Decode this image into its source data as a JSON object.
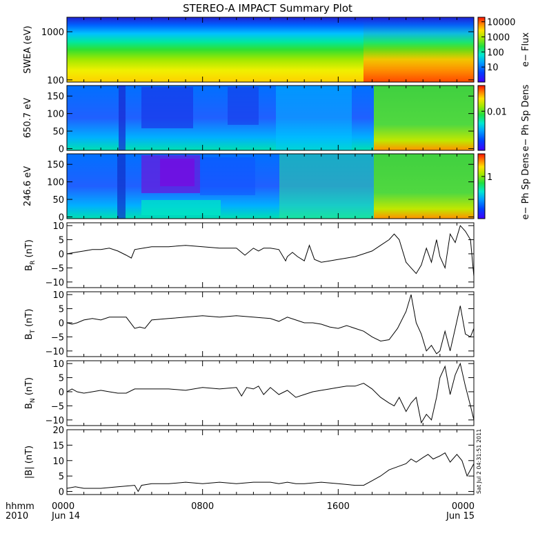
{
  "title": "STEREO-A IMPACT Summary Plot",
  "stamp": "Sat Jul  2 04:31:51 2011",
  "x_axis": {
    "corner_top": "hhmm",
    "corner_bottom": "2010",
    "ticks": [
      {
        "hour": 0,
        "top": "0000",
        "bottom": "Jun 14"
      },
      {
        "hour": 8,
        "top": "0800",
        "bottom": ""
      },
      {
        "hour": 16,
        "top": "1600",
        "bottom": ""
      },
      {
        "hour": 24,
        "top": "0000",
        "bottom": "Jun 15"
      }
    ],
    "minor_step_hours": 1,
    "range_hours": [
      0,
      24
    ]
  },
  "chart_data": [
    {
      "type": "heatmap",
      "id": "swea",
      "ylabel": "SWEA (eV)",
      "yscale": "log",
      "ylim": [
        90,
        2000
      ],
      "yticks": [
        100,
        1000
      ],
      "ytick_labels": [
        "100",
        "1000"
      ],
      "colorbar": {
        "label": "e− Flux",
        "scale": "log",
        "range": [
          1,
          20000
        ],
        "ticks": [
          10,
          100,
          1000,
          10000
        ],
        "tick_labels": [
          "10",
          "100",
          "1000",
          "10000"
        ]
      },
      "note": "Flux highest at low energy; enhancement after ~18:30"
    },
    {
      "type": "heatmap",
      "id": "pad650",
      "ylabel": "650.7 eV",
      "ylim": [
        -5,
        180
      ],
      "yticks": [
        0,
        50,
        100,
        150
      ],
      "ytick_labels": [
        "0",
        "50",
        "100",
        "150"
      ],
      "colorbar": {
        "label": "e− Ph Sp Dens",
        "scale": "log",
        "range": [
          0.0003,
          0.1
        ],
        "ticks": [
          0.01
        ],
        "tick_labels": [
          "0.01"
        ]
      }
    },
    {
      "type": "heatmap",
      "id": "pad246",
      "ylabel": "246.6 eV",
      "ylim": [
        -5,
        180
      ],
      "yticks": [
        0,
        50,
        100,
        150
      ],
      "ytick_labels": [
        "0",
        "50",
        "100",
        "150"
      ],
      "colorbar": {
        "label": "e− Ph Sp Dens",
        "scale": "log",
        "range": [
          0.05,
          5
        ],
        "ticks": [
          1
        ],
        "tick_labels": [
          "1"
        ]
      }
    },
    {
      "type": "line",
      "id": "br",
      "ylabel_main": "B",
      "ylabel_sub": "R",
      "ylabel_unit": " (nT)",
      "ylim": [
        -12,
        11
      ],
      "yticks": [
        -10,
        -5,
        0,
        5,
        10
      ],
      "ytick_labels": [
        "−10",
        "−5",
        "0",
        "5",
        "10"
      ],
      "x": [
        0,
        0.5,
        1,
        1.5,
        2,
        2.5,
        3,
        3.5,
        3.8,
        4,
        4.5,
        5,
        6,
        7,
        8,
        9,
        10,
        10.5,
        11,
        11.3,
        11.6,
        12,
        12.5,
        12.9,
        13,
        13.3,
        13.6,
        14,
        14.3,
        14.6,
        15,
        15.5,
        16,
        16.5,
        17,
        17.5,
        18,
        18.5,
        19,
        19.3,
        19.6,
        20,
        20.3,
        20.6,
        20.9,
        21.2,
        21.5,
        21.8,
        22,
        22.3,
        22.6,
        22.9,
        23.2,
        23.5,
        23.8,
        24
      ],
      "y": [
        0,
        0.5,
        1,
        1.5,
        1.5,
        2,
        1,
        -0.5,
        -1.5,
        1.5,
        2,
        2.5,
        2.5,
        3,
        2.5,
        2,
        2,
        -0.5,
        2,
        1,
        2,
        2,
        1.5,
        -2.5,
        -1,
        0.5,
        -1,
        -2.5,
        3,
        -2,
        -3,
        -2.5,
        -2,
        -1.5,
        -1,
        0,
        1,
        3,
        5,
        7,
        5,
        -3,
        -5,
        -7,
        -4,
        2,
        -3,
        5,
        -1,
        -5,
        7,
        4,
        10,
        8,
        5,
        -8
      ]
    },
    {
      "type": "line",
      "id": "bt",
      "ylabel_main": "B",
      "ylabel_sub": "T",
      "ylabel_unit": " (nT)",
      "ylim": [
        -12,
        11
      ],
      "yticks": [
        -10,
        -5,
        0,
        5,
        10
      ],
      "ytick_labels": [
        "−10",
        "−5",
        "0",
        "5",
        "10"
      ],
      "x": [
        0,
        0.3,
        0.6,
        1,
        1.5,
        2,
        2.5,
        3,
        3.5,
        4,
        4.3,
        4.6,
        5,
        6,
        7,
        8,
        9,
        10,
        11,
        12,
        12.5,
        13,
        13.5,
        14,
        14.5,
        15,
        15.5,
        16,
        16.5,
        17,
        17.5,
        18,
        18.5,
        19,
        19.5,
        20,
        20.3,
        20.6,
        20.9,
        21.2,
        21.5,
        21.8,
        22,
        22.3,
        22.6,
        22.9,
        23.2,
        23.5,
        23.8,
        24
      ],
      "y": [
        0,
        -0.5,
        0,
        1,
        1.5,
        1,
        2,
        2,
        2,
        -2,
        -1.5,
        -2,
        1,
        1.5,
        2,
        2.5,
        2,
        2.5,
        2,
        1.5,
        0.5,
        2,
        1,
        0,
        0,
        -0.5,
        -1.5,
        -2,
        -1,
        -2,
        -3,
        -5,
        -6.5,
        -6,
        -2,
        4,
        10,
        0,
        -4,
        -10,
        -8,
        -11,
        -10,
        -3,
        -10,
        -2,
        6,
        -4,
        -5,
        -2
      ]
    },
    {
      "type": "line",
      "id": "bn",
      "ylabel_main": "B",
      "ylabel_sub": "N",
      "ylabel_unit": " (nT)",
      "ylim": [
        -12,
        11
      ],
      "yticks": [
        -10,
        -5,
        0,
        5,
        10
      ],
      "ytick_labels": [
        "−10",
        "−5",
        "0",
        "5",
        "10"
      ],
      "x": [
        0,
        0.3,
        0.6,
        1,
        1.5,
        2,
        2.5,
        3,
        3.5,
        4,
        5,
        6,
        7,
        8,
        9,
        10,
        10.3,
        10.6,
        11,
        11.3,
        11.6,
        12,
        12.5,
        13,
        13.5,
        14,
        14.5,
        15,
        15.5,
        16,
        16.5,
        17,
        17.5,
        18,
        18.5,
        19,
        19.3,
        19.6,
        20,
        20.3,
        20.6,
        20.9,
        21.2,
        21.5,
        21.8,
        22,
        22.3,
        22.6,
        22.9,
        23.2,
        23.5,
        23.8,
        24
      ],
      "y": [
        0,
        1,
        0,
        -0.5,
        0,
        0.5,
        0,
        -0.5,
        -0.5,
        1,
        1,
        1,
        0.5,
        1.5,
        1,
        1.5,
        -1.5,
        1.5,
        1,
        2,
        -1,
        1.5,
        -1,
        0.5,
        -2,
        -1,
        0,
        0.5,
        1,
        1.5,
        2,
        2,
        3,
        1,
        -2,
        -4,
        -5,
        -2,
        -7,
        -4,
        -2,
        -11,
        -8,
        -10,
        -2,
        5,
        9,
        -1,
        6,
        10,
        2,
        -5,
        -10
      ]
    },
    {
      "type": "line",
      "id": "bmag",
      "ylabel_main": "|B|",
      "ylabel_sub": "",
      "ylabel_unit": " (nT)",
      "ylim": [
        -1,
        20
      ],
      "yticks": [
        0,
        5,
        10,
        15,
        20
      ],
      "ytick_labels": [
        "0",
        "5",
        "10",
        "15",
        "20"
      ],
      "x": [
        0,
        0.5,
        1,
        2,
        3,
        4,
        4.2,
        4.4,
        5,
        6,
        7,
        8,
        9,
        10,
        11,
        12,
        12.5,
        13,
        13.5,
        14,
        15,
        16,
        17,
        17.5,
        18,
        18.5,
        19,
        19.5,
        20,
        20.3,
        20.6,
        21,
        21.3,
        21.6,
        22,
        22.3,
        22.6,
        23,
        23.3,
        23.6,
        24
      ],
      "y": [
        1,
        1.5,
        1,
        1,
        1.5,
        2,
        0,
        2,
        2.5,
        2.5,
        3,
        2.5,
        3,
        2.5,
        3,
        3,
        2.5,
        3,
        2.5,
        2.5,
        3,
        2.5,
        2,
        2,
        3.5,
        5,
        7,
        8,
        9,
        10.5,
        9.5,
        11,
        12,
        10.5,
        11.5,
        12.5,
        9.5,
        12,
        10,
        5,
        9
      ]
    }
  ]
}
